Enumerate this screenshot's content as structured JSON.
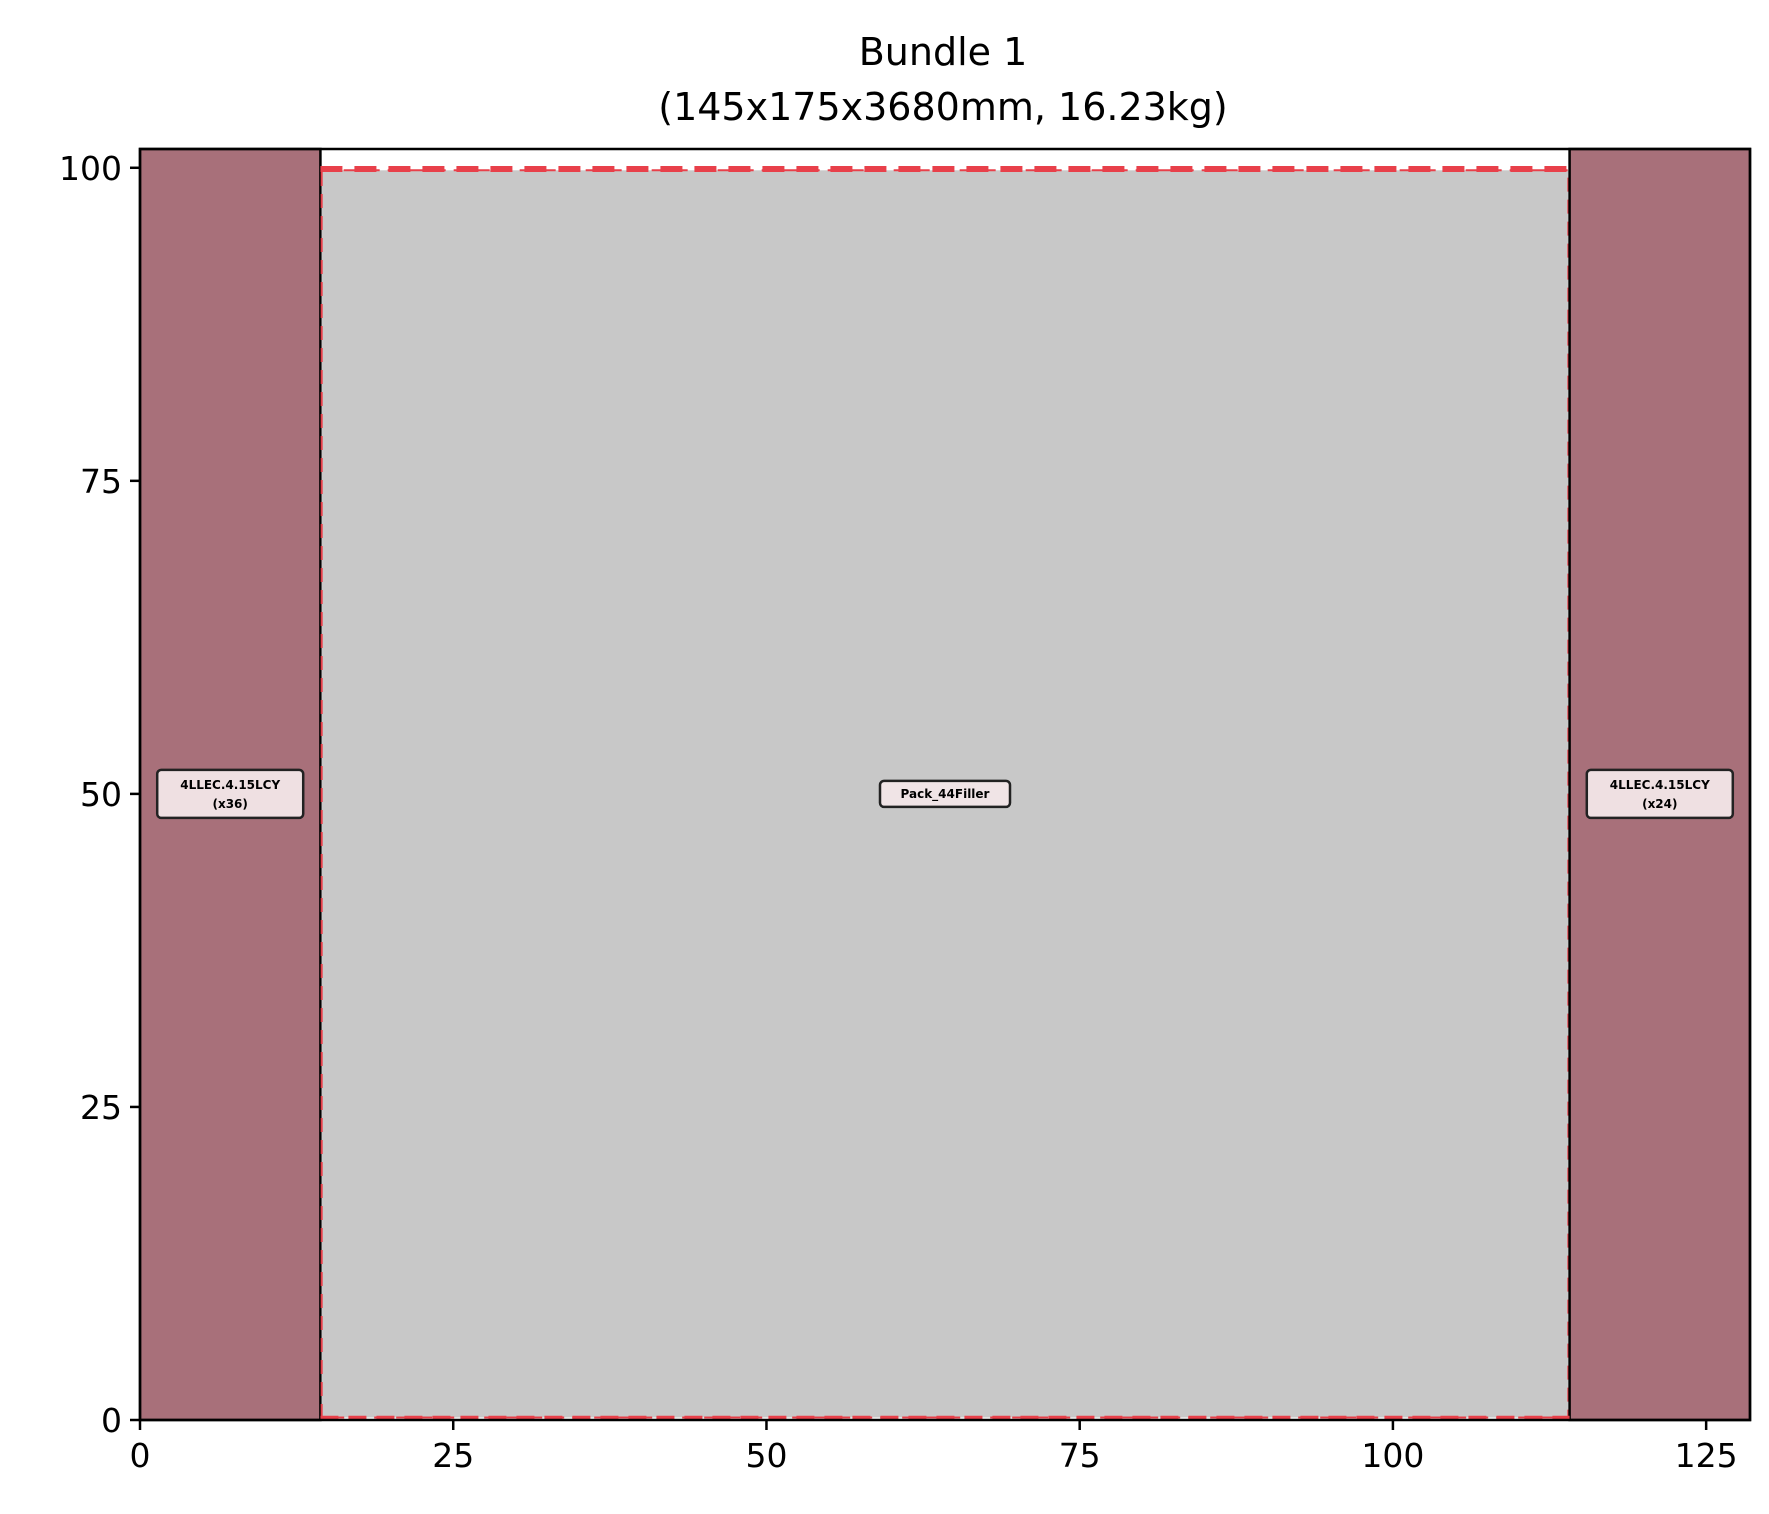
{
  "chart_data": {
    "type": "rectangle-layout",
    "title": "Bundle 1",
    "subtitle": "(145x175x3680mm, 16.23kg)",
    "xlim": [
      0,
      128.5
    ],
    "ylim": [
      0,
      101.5
    ],
    "xticks": [
      0,
      25,
      50,
      75,
      100,
      125
    ],
    "yticks": [
      0,
      25,
      50,
      75,
      100
    ],
    "grid": false,
    "regions": [
      {
        "label": "4LLEC.4.15LCY",
        "count": "(x36)",
        "x0": 0,
        "x1": 14.4,
        "y0": 0,
        "y1": 101.5,
        "color": "#a8707a",
        "edge": "#000000"
      },
      {
        "label": "Pack_44Filler",
        "count": "",
        "x0": 14.5,
        "x1": 114.0,
        "y0": 0.2,
        "y1": 99.8,
        "color": "#c8c8c8",
        "edge": "#e8404a"
      },
      {
        "label": "4LLEC.4.15LCY",
        "count": "(x24)",
        "x0": 114.1,
        "x1": 128.5,
        "y0": 0,
        "y1": 101.5,
        "color": "#a8707a",
        "edge": "#000000"
      }
    ],
    "dashed_lines": [
      {
        "y": 99.9,
        "x0": 14.4,
        "x1": 114.1,
        "color": "#e8404a"
      },
      {
        "y": 0.2,
        "x0": 14.4,
        "x1": 114.1,
        "color": "#e8404a"
      }
    ]
  }
}
